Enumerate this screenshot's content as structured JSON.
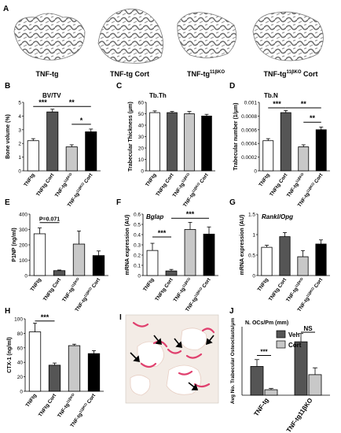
{
  "figure": {
    "panel_a": {
      "letter": "A",
      "labels": [
        "TNF-tg",
        "TNF-tg Cort",
        "TNF-tg¹¹ᵝᴷᴼ",
        "TNF-tg¹¹ᵝᴷᴼ Cort"
      ],
      "labels_plain": [
        "TNF-tg",
        "TNF-tg Cort",
        "TNF-tg",
        "TNF-tg"
      ],
      "label_sups": [
        "",
        "",
        "11βKO",
        "11βKO"
      ],
      "label_suffix": [
        "",
        "",
        "",
        " Cort"
      ]
    },
    "panel_i": {
      "letter": "I"
    },
    "colors": {
      "white_bar": "#ffffff",
      "dark_bar": "#555555",
      "light_bar": "#c8c8c8",
      "black_bar": "#000000",
      "photo_bg": "#f3ece6",
      "stain": "#e0406e"
    }
  },
  "chart_data": [
    {
      "id": "B",
      "type": "bar",
      "letter": "B",
      "title": "BV/TV",
      "ylabel": "Bone volume (%)",
      "ylim": [
        0,
        5
      ],
      "ticks": [
        0,
        1,
        2,
        3,
        4,
        5
      ],
      "tick_labels": [
        "0",
        "1",
        "2",
        "3",
        "4",
        "5"
      ],
      "categories": [
        "TNFtg",
        "TNFtg Cort",
        "TNF-tg11βKO",
        "TNF-tg11βKO Cort"
      ],
      "values": [
        2.2,
        4.3,
        1.75,
        2.85
      ],
      "errors": [
        0.15,
        0.2,
        0.15,
        0.2
      ],
      "significance": [
        {
          "from": 0,
          "to": 1,
          "label": "***"
        },
        {
          "from": 1,
          "to": 3,
          "label": "**"
        },
        {
          "from": 2,
          "to": 3,
          "label": "*"
        }
      ]
    },
    {
      "id": "C",
      "type": "bar",
      "letter": "C",
      "title": "Tb.Th",
      "ylabel": "Trabecular Thickness (μm)",
      "ylim": [
        0,
        60
      ],
      "ticks": [
        0,
        10,
        20,
        30,
        40,
        50,
        60
      ],
      "tick_labels": [
        "0",
        "10",
        "20",
        "30",
        "40",
        "50",
        "60"
      ],
      "categories": [
        "TNFtg",
        "TNFtg Cort",
        "TNF-tg11βKO",
        "TNF-tg11βKO Cort"
      ],
      "values": [
        51,
        51,
        50,
        48
      ],
      "errors": [
        1.5,
        1,
        2,
        1.5
      ],
      "significance": []
    },
    {
      "id": "D",
      "type": "bar",
      "letter": "D",
      "title": "Tb.N",
      "ylabel": "Trabecular number (1/μm)",
      "ylim": [
        0,
        0.001
      ],
      "ticks": [
        0,
        0.0002,
        0.0004,
        0.0006,
        0.0008,
        0.001
      ],
      "tick_labels": [
        "0",
        "0.0002",
        "0.0004",
        "0.0006",
        "0.0008",
        "0.001"
      ],
      "categories": [
        "TNFtg",
        "TNFtg Cort",
        "TNF-tg11βKO",
        "TNF-tg11βKO Cort"
      ],
      "values": [
        0.00044,
        0.00085,
        0.00035,
        0.0006
      ],
      "errors": [
        3e-05,
        3e-05,
        3e-05,
        4e-05
      ],
      "significance": [
        {
          "from": 0,
          "to": 1,
          "label": "***"
        },
        {
          "from": 1,
          "to": 3,
          "label": "**"
        },
        {
          "from": 2,
          "to": 3,
          "label": "**"
        }
      ]
    },
    {
      "id": "E",
      "type": "bar",
      "letter": "E",
      "title": "",
      "ylabel": "P1NP (ng/ml)",
      "ylim": [
        0,
        400
      ],
      "ticks": [
        0,
        100,
        200,
        300,
        400
      ],
      "tick_labels": [
        "0",
        "100",
        "200",
        "300",
        "400"
      ],
      "categories": [
        "TNFtg",
        "TNFtg Cort",
        "TNF-tg11βKO",
        "TNF-tg11βKO Cort"
      ],
      "values": [
        272,
        32,
        205,
        130
      ],
      "errors": [
        38,
        4,
        85,
        30
      ],
      "significance": [
        {
          "from": 0,
          "to": 1,
          "label": "P=0.071"
        }
      ]
    },
    {
      "id": "F",
      "type": "bar",
      "letter": "F",
      "title": "Bglap",
      "ylabel": "mRNA expression (AU)",
      "ylim": [
        0,
        0.6
      ],
      "ticks": [
        0,
        0.1,
        0.2,
        0.3,
        0.4,
        0.5,
        0.6
      ],
      "tick_labels": [
        "0",
        "0.1",
        "0.2",
        "0.3",
        "0.4",
        "0.5",
        "0.6"
      ],
      "categories": [
        "TNFtg",
        "TNFtg Cort",
        "TNF-tg11βKO",
        "TNF-tg11βKO Cort"
      ],
      "values": [
        0.245,
        0.045,
        0.45,
        0.405
      ],
      "errors": [
        0.07,
        0.015,
        0.07,
        0.07
      ],
      "significance": [
        {
          "from": 0,
          "to": 1,
          "label": "***"
        },
        {
          "from": 1,
          "to": 3,
          "label": "***"
        }
      ]
    },
    {
      "id": "G",
      "type": "bar",
      "letter": "G",
      "title": "Rankl/Opg",
      "ylabel": "mRNA expression (AU)",
      "ylim": [
        0,
        1.5
      ],
      "ticks": [
        0,
        0.5,
        1,
        1.5
      ],
      "tick_labels": [
        "0",
        "0.5",
        "1",
        "1.5"
      ],
      "categories": [
        "TNFtg",
        "TNFtg Cort",
        "TNF-tg11βKO",
        "TNF-tg11βKO Cort"
      ],
      "values": [
        0.69,
        0.95,
        0.46,
        0.77
      ],
      "errors": [
        0.05,
        0.1,
        0.15,
        0.1
      ],
      "significance": []
    },
    {
      "id": "H",
      "type": "bar",
      "letter": "H",
      "title": "",
      "ylabel": "CTX-1 (ng/ml)",
      "ylim": [
        0,
        100
      ],
      "ticks": [
        0,
        20,
        40,
        60,
        80,
        100
      ],
      "tick_labels": [
        "0",
        "20",
        "40",
        "60",
        "80",
        "100"
      ],
      "categories": [
        "TNFtg",
        "TNFtg Cort",
        "TNF-tg11βKO",
        "TNF-tg11βKO Cort"
      ],
      "values": [
        82,
        36,
        63,
        52
      ],
      "errors": [
        12,
        3,
        2,
        4
      ],
      "significance": [
        {
          "from": 0,
          "to": 1,
          "label": "***"
        }
      ]
    },
    {
      "id": "J",
      "type": "bar",
      "letter": "J",
      "title": "N. OCs/Pm (mm)",
      "ylabel": "Avg No. Trabecular Osteoclasts/μm",
      "ylim": [
        0,
        2.5
      ],
      "categories": [
        "TNF-tg",
        "TNF-tg11βKO"
      ],
      "series": [
        {
          "name": "Veh",
          "values": [
            1.05,
            1.95
          ],
          "errors": [
            0.25,
            0.3
          ]
        },
        {
          "name": "Cort",
          "values": [
            0.2,
            0.75
          ],
          "errors": [
            0.05,
            0.25
          ]
        }
      ],
      "significance": [
        {
          "group": 0,
          "label": "***"
        },
        {
          "group": 1,
          "label": "NS"
        }
      ],
      "legend": "top-right"
    }
  ]
}
